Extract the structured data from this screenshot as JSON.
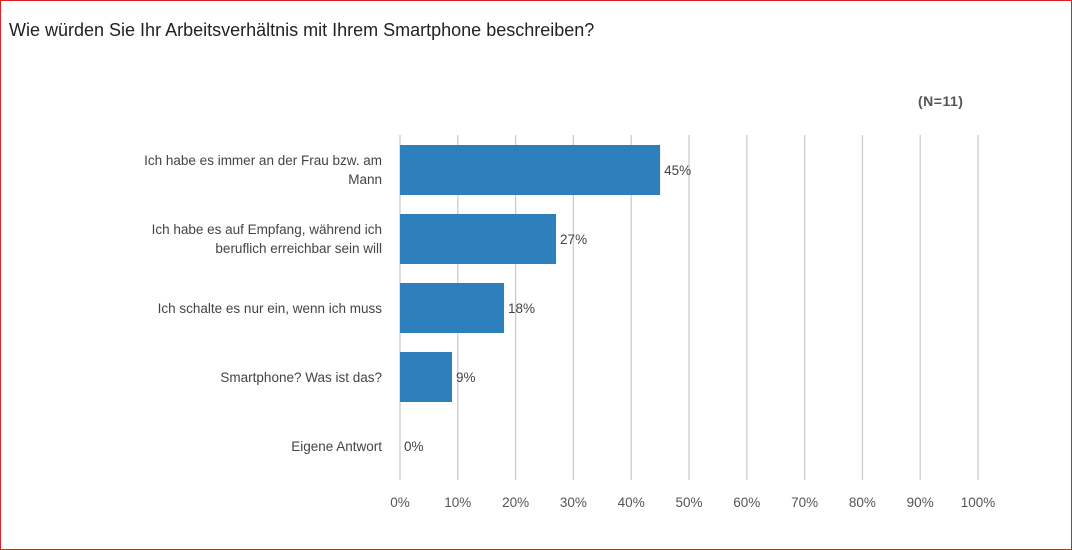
{
  "title": "Wie würden Sie Ihr Arbeitsverhältnis mit Ihrem Smartphone beschreiben?",
  "n_label": "(N=11)",
  "chart_data": {
    "type": "bar",
    "orientation": "horizontal",
    "categories": [
      [
        "Ich habe es immer an der Frau bzw. am",
        "Mann"
      ],
      [
        "Ich habe es auf Empfang, während ich",
        "beruflich erreichbar sein will"
      ],
      [
        "Ich schalte es nur ein, wenn ich muss"
      ],
      [
        "Smartphone? Was ist das?"
      ],
      [
        "Eigene Antwort"
      ]
    ],
    "values": [
      45,
      27,
      18,
      9,
      0
    ],
    "value_labels": [
      "45%",
      "27%",
      "18%",
      "9%",
      "0%"
    ],
    "xlim": [
      0,
      100
    ],
    "x_ticks": [
      "0%",
      "10%",
      "20%",
      "30%",
      "40%",
      "50%",
      "60%",
      "70%",
      "80%",
      "90%",
      "100%"
    ],
    "grid": true,
    "bar_color": "#2e80bc"
  }
}
